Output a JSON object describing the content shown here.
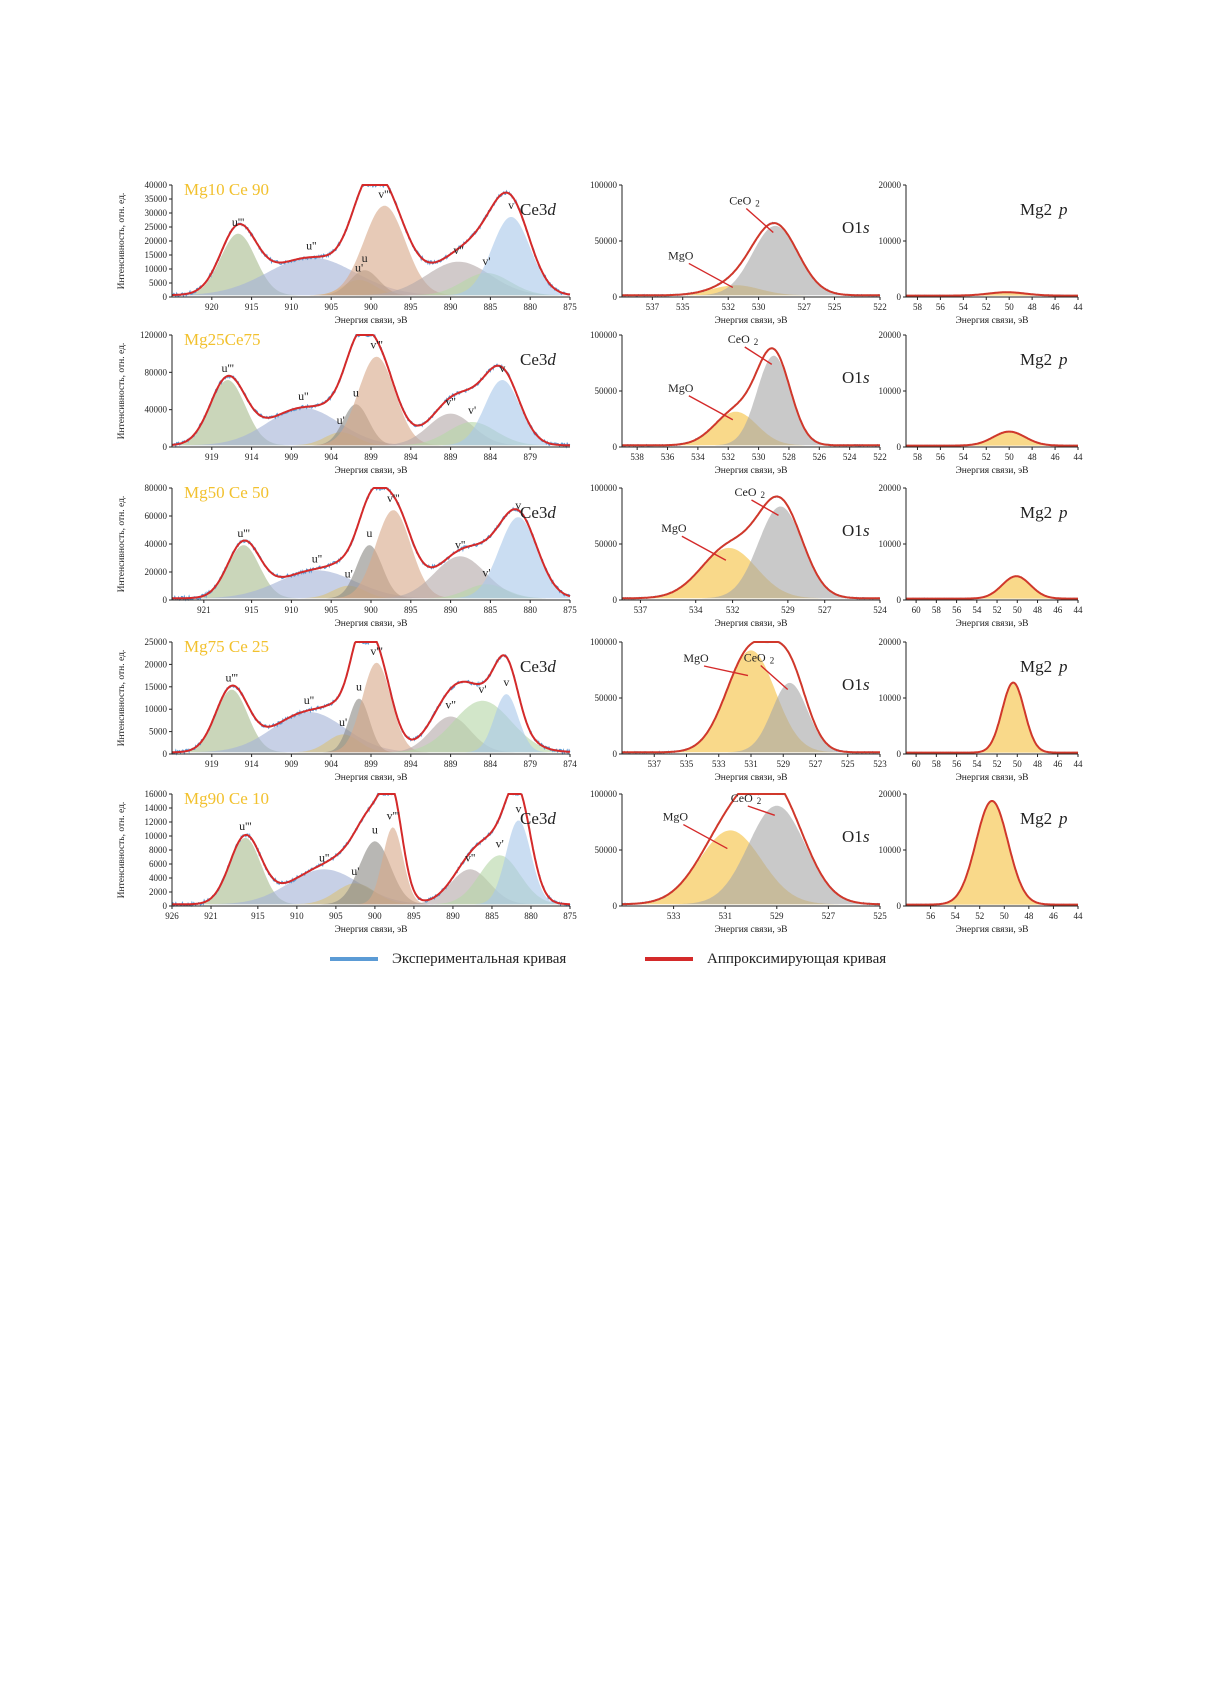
{
  "colors": {
    "experimental": "#5b9bd5",
    "fit": "#d42a2a",
    "sample_label": "#f2c12e",
    "u_triple": "#a9bd8f",
    "u_double": "#a4b3d6",
    "u_single": "#d9c27a",
    "u": "#8c8a86",
    "v_triple": "#d9a98a",
    "v_double": "#b5a9a9",
    "v_single": "#b6d6a8",
    "v": "#a9c8ea",
    "MgO": "#f5c242",
    "CeO2": "#a8a8a8",
    "Mg": "#f5c242"
  },
  "legend": {
    "experimental": "Экспериментальная кривая",
    "fit": "Аппроксимирующая кривая"
  },
  "common": {
    "ylabel": "Интенсивность, отн. ед.",
    "xlabel": "Энергия связи, эВ",
    "ce_panel": "Ce3d",
    "o_panel": "O1s",
    "mg_panel": "Mg2p",
    "peak_labels": [
      "u'''",
      "u''",
      "u'",
      "u",
      "v'''",
      "v''",
      "v'",
      "v"
    ],
    "o_labels": [
      "MgO",
      "CeO 2"
    ]
  },
  "chart_data": [
    {
      "sample": "Mg10 Ce 90",
      "ce": {
        "type": "area",
        "x_range": [
          925,
          875
        ],
        "xticks": [
          "920",
          "915",
          "910",
          "905",
          "900",
          "895",
          "890",
          "885",
          "880",
          "875"
        ],
        "ylim": [
          0,
          40000
        ],
        "yticks": [
          "0",
          "5000",
          "10000",
          "15000",
          "20000",
          "25000",
          "30000",
          "35000",
          "40000"
        ],
        "peaks": [
          {
            "name": "u'''",
            "center": 916.7,
            "height": 22000,
            "width": 2.2
          },
          {
            "name": "u''",
            "center": 907.5,
            "height": 13500,
            "width": 5.5
          },
          {
            "name": "u'",
            "center": 901.5,
            "height": 5500,
            "width": 2.0
          },
          {
            "name": "u",
            "center": 900.8,
            "height": 9000,
            "width": 1.8
          },
          {
            "name": "v'''",
            "center": 898.3,
            "height": 32000,
            "width": 2.6
          },
          {
            "name": "v''",
            "center": 889.0,
            "height": 12000,
            "width": 4.0
          },
          {
            "name": "v'",
            "center": 885.5,
            "height": 8000,
            "width": 3.0
          },
          {
            "name": "v",
            "center": 882.4,
            "height": 28000,
            "width": 2.4
          }
        ]
      },
      "o": {
        "type": "area",
        "x_range": [
          539,
          522
        ],
        "xticks": [
          "537",
          "535",
          "532",
          "530",
          "527",
          "525",
          "522"
        ],
        "ylim": [
          0,
          100000
        ],
        "yticks": [
          "0",
          "50000",
          "100000"
        ],
        "peaks": [
          {
            "name": "MgO",
            "center": 531.5,
            "height": 9000,
            "width": 1.6
          },
          {
            "name": "CeO2",
            "center": 528.9,
            "height": 62000,
            "width": 1.5
          }
        ]
      },
      "mg": {
        "type": "area",
        "x_range": [
          59,
          44
        ],
        "xticks": [
          "58",
          "56",
          "54",
          "52",
          "50",
          "48",
          "46",
          "44"
        ],
        "ylim": [
          0,
          20000
        ],
        "yticks": [
          "0",
          "10000",
          "20000"
        ],
        "peaks": [
          {
            "name": "Mg",
            "center": 50.2,
            "height": 600,
            "width": 1.6
          }
        ]
      }
    },
    {
      "sample": "Mg25Ce75",
      "ce": {
        "type": "area",
        "x_range": [
          924,
          874
        ],
        "xticks": [
          "919",
          "914",
          "909",
          "904",
          "899",
          "894",
          "889",
          "884",
          "879"
        ],
        "ylim": [
          0,
          120000
        ],
        "yticks": [
          "0",
          "40000",
          "80000",
          "120000"
        ],
        "peaks": [
          {
            "name": "u'''",
            "center": 917.0,
            "height": 70000,
            "width": 2.2
          },
          {
            "name": "u''",
            "center": 907.5,
            "height": 40000,
            "width": 4.5
          },
          {
            "name": "u'",
            "center": 902.8,
            "height": 14000,
            "width": 2.0
          },
          {
            "name": "u",
            "center": 900.9,
            "height": 44000,
            "width": 1.6
          },
          {
            "name": "v'''",
            "center": 898.3,
            "height": 95000,
            "width": 2.3
          },
          {
            "name": "v''",
            "center": 889.0,
            "height": 34000,
            "width": 2.8
          },
          {
            "name": "v'",
            "center": 886.3,
            "height": 25000,
            "width": 3.0
          },
          {
            "name": "v",
            "center": 882.5,
            "height": 70000,
            "width": 2.2
          }
        ]
      },
      "o": {
        "type": "area",
        "x_range": [
          539,
          522
        ],
        "xticks": [
          "538",
          "536",
          "534",
          "532",
          "530",
          "528",
          "526",
          "524",
          "522"
        ],
        "ylim": [
          0,
          100000
        ],
        "yticks": [
          "0",
          "50000",
          "100000"
        ],
        "peaks": [
          {
            "name": "MgO",
            "center": 531.5,
            "height": 30000,
            "width": 1.4
          },
          {
            "name": "CeO2",
            "center": 529.0,
            "height": 80000,
            "width": 1.1
          }
        ]
      },
      "mg": {
        "type": "area",
        "x_range": [
          59,
          44
        ],
        "xticks": [
          "58",
          "56",
          "54",
          "52",
          "50",
          "48",
          "46",
          "44"
        ],
        "ylim": [
          0,
          20000
        ],
        "yticks": [
          "0",
          "10000",
          "20000"
        ],
        "peaks": [
          {
            "name": "Mg",
            "center": 50.0,
            "height": 2500,
            "width": 1.4
          }
        ]
      }
    },
    {
      "sample": "Mg50 Ce 50",
      "ce": {
        "type": "area",
        "x_range": [
          925,
          875
        ],
        "xticks": [
          "921",
          "915",
          "910",
          "905",
          "900",
          "895",
          "890",
          "885",
          "880",
          "875"
        ],
        "ylim": [
          0,
          80000
        ],
        "yticks": [
          "0",
          "20000",
          "40000",
          "60000",
          "80000"
        ],
        "peaks": [
          {
            "name": "u'''",
            "center": 916.0,
            "height": 38000,
            "width": 2.0
          },
          {
            "name": "u''",
            "center": 906.8,
            "height": 20000,
            "width": 4.8
          },
          {
            "name": "u'",
            "center": 902.8,
            "height": 9000,
            "width": 2.0
          },
          {
            "name": "u",
            "center": 900.2,
            "height": 38000,
            "width": 1.6
          },
          {
            "name": "v'''",
            "center": 897.2,
            "height": 63000,
            "width": 2.2
          },
          {
            "name": "v''",
            "center": 888.8,
            "height": 30000,
            "width": 3.2
          },
          {
            "name": "v'",
            "center": 885.5,
            "height": 10000,
            "width": 2.5
          },
          {
            "name": "v",
            "center": 881.5,
            "height": 58000,
            "width": 2.4
          }
        ]
      },
      "o": {
        "type": "area",
        "x_range": [
          538,
          524
        ],
        "xticks": [
          "537",
          "534",
          "532",
          "529",
          "527",
          "524"
        ],
        "ylim": [
          0,
          100000
        ],
        "yticks": [
          "0",
          "50000",
          "100000"
        ],
        "peaks": [
          {
            "name": "MgO",
            "center": 532.2,
            "height": 45000,
            "width": 1.5
          },
          {
            "name": "CeO2",
            "center": 529.4,
            "height": 82000,
            "width": 1.2
          }
        ]
      },
      "mg": {
        "type": "area",
        "x_range": [
          61,
          44
        ],
        "xticks": [
          "60",
          "58",
          "56",
          "54",
          "52",
          "50",
          "48",
          "46",
          "44"
        ],
        "ylim": [
          0,
          20000
        ],
        "yticks": [
          "0",
          "10000",
          "20000"
        ],
        "peaks": [
          {
            "name": "Mg",
            "center": 50.1,
            "height": 4000,
            "width": 1.4
          }
        ]
      }
    },
    {
      "sample": "Mg75 Ce 25",
      "ce": {
        "type": "area",
        "x_range": [
          924,
          874
        ],
        "xticks": [
          "919",
          "914",
          "909",
          "904",
          "899",
          "894",
          "889",
          "884",
          "879",
          "874"
        ],
        "ylim": [
          0,
          25000
        ],
        "yticks": [
          "0",
          "5000",
          "10000",
          "15000",
          "20000",
          "25000"
        ],
        "peaks": [
          {
            "name": "u'''",
            "center": 916.5,
            "height": 14000,
            "width": 2.0
          },
          {
            "name": "u''",
            "center": 906.8,
            "height": 9000,
            "width": 4.5
          },
          {
            "name": "u'",
            "center": 902.5,
            "height": 4000,
            "width": 2.0
          },
          {
            "name": "u",
            "center": 900.5,
            "height": 12000,
            "width": 1.3
          },
          {
            "name": "v'''",
            "center": 898.3,
            "height": 20000,
            "width": 1.8
          },
          {
            "name": "v''",
            "center": 889.0,
            "height": 8000,
            "width": 2.5
          },
          {
            "name": "v'",
            "center": 885.0,
            "height": 11500,
            "width": 3.6
          },
          {
            "name": "v",
            "center": 882.0,
            "height": 13000,
            "width": 1.5
          }
        ]
      },
      "o": {
        "type": "area",
        "x_range": [
          539,
          523
        ],
        "xticks": [
          "537",
          "535",
          "533",
          "531",
          "529",
          "527",
          "525",
          "523"
        ],
        "ylim": [
          0,
          100000
        ],
        "yticks": [
          "0",
          "50000",
          "100000"
        ],
        "peaks": [
          {
            "name": "MgO",
            "center": 531.0,
            "height": 91000,
            "width": 1.5
          },
          {
            "name": "CeO2",
            "center": 528.6,
            "height": 62000,
            "width": 1.1
          }
        ]
      },
      "mg": {
        "type": "area",
        "x_range": [
          61,
          44
        ],
        "xticks": [
          "60",
          "58",
          "56",
          "54",
          "52",
          "50",
          "48",
          "46",
          "44"
        ],
        "ylim": [
          0,
          20000
        ],
        "yticks": [
          "0",
          "10000",
          "20000"
        ],
        "peaks": [
          {
            "name": "Mg",
            "center": 50.4,
            "height": 12500,
            "width": 1.1
          }
        ]
      }
    },
    {
      "sample": "Mg90 Ce 10",
      "ce": {
        "type": "area",
        "x_range": [
          926,
          875
        ],
        "xticks": [
          "926",
          "921",
          "915",
          "910",
          "905",
          "900",
          "895",
          "890",
          "885",
          "880",
          "875"
        ],
        "ylim": [
          0,
          16000
        ],
        "yticks": [
          "0",
          "2000",
          "4000",
          "6000",
          "8000",
          "10000",
          "12000",
          "14000",
          "16000"
        ],
        "peaks": [
          {
            "name": "u'''",
            "center": 916.6,
            "height": 9500,
            "width": 2.0
          },
          {
            "name": "u''",
            "center": 906.5,
            "height": 5000,
            "width": 4.5
          },
          {
            "name": "u'",
            "center": 902.5,
            "height": 3000,
            "width": 2.5
          },
          {
            "name": "u",
            "center": 900.0,
            "height": 9000,
            "width": 2.0
          },
          {
            "name": "v'''",
            "center": 897.7,
            "height": 11000,
            "width": 1.3
          },
          {
            "name": "v''",
            "center": 887.8,
            "height": 5000,
            "width": 2.5
          },
          {
            "name": "v'",
            "center": 884.0,
            "height": 7000,
            "width": 2.6
          },
          {
            "name": "v",
            "center": 881.6,
            "height": 12000,
            "width": 1.6
          }
        ]
      },
      "o": {
        "type": "area",
        "x_range": [
          535,
          525
        ],
        "xticks": [
          "533",
          "531",
          "529",
          "527",
          "525"
        ],
        "ylim": [
          0,
          100000
        ],
        "yticks": [
          "0",
          "50000",
          "100000"
        ],
        "peaks": [
          {
            "name": "MgO",
            "center": 530.8,
            "height": 66000,
            "width": 1.2
          },
          {
            "name": "CeO2",
            "center": 529.0,
            "height": 88000,
            "width": 1.1
          }
        ]
      },
      "mg": {
        "type": "area",
        "x_range": [
          58,
          44
        ],
        "xticks": [
          "56",
          "54",
          "52",
          "50",
          "48",
          "46",
          "44"
        ],
        "ylim": [
          0,
          20000
        ],
        "yticks": [
          "0",
          "10000",
          "20000"
        ],
        "peaks": [
          {
            "name": "Mg",
            "center": 51.0,
            "height": 18500,
            "width": 1.3
          }
        ]
      }
    }
  ]
}
